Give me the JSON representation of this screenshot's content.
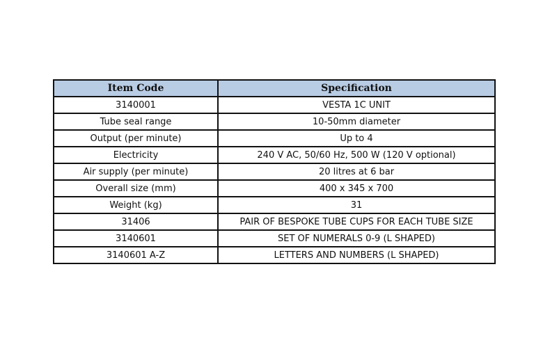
{
  "table": {
    "headers": [
      "Item Code",
      "Specification"
    ],
    "header_bg": "#b8cce4",
    "rows": [
      [
        "3140001",
        "VESTA 1C UNIT"
      ],
      [
        "Tube seal range",
        "10-50mm diameter"
      ],
      [
        "Output (per minute)",
        "Up to 4"
      ],
      [
        "Electricity",
        "240 V AC, 50/60 Hz, 500 W (120 V optional)"
      ],
      [
        "Air supply (per minute)",
        "20 litres at 6 bar"
      ],
      [
        "Overall size (mm)",
        "400 x 345 x 700"
      ],
      [
        "Weight (kg)",
        "31"
      ],
      [
        "31406",
        "PAIR OF BESPOKE TUBE CUPS FOR EACH TUBE SIZE"
      ],
      [
        "3140601",
        "SET OF NUMERALS 0-9 (L SHAPED)"
      ],
      [
        "3140601 A-Z",
        "LETTERS AND NUMBERS (L SHAPED)"
      ]
    ]
  }
}
